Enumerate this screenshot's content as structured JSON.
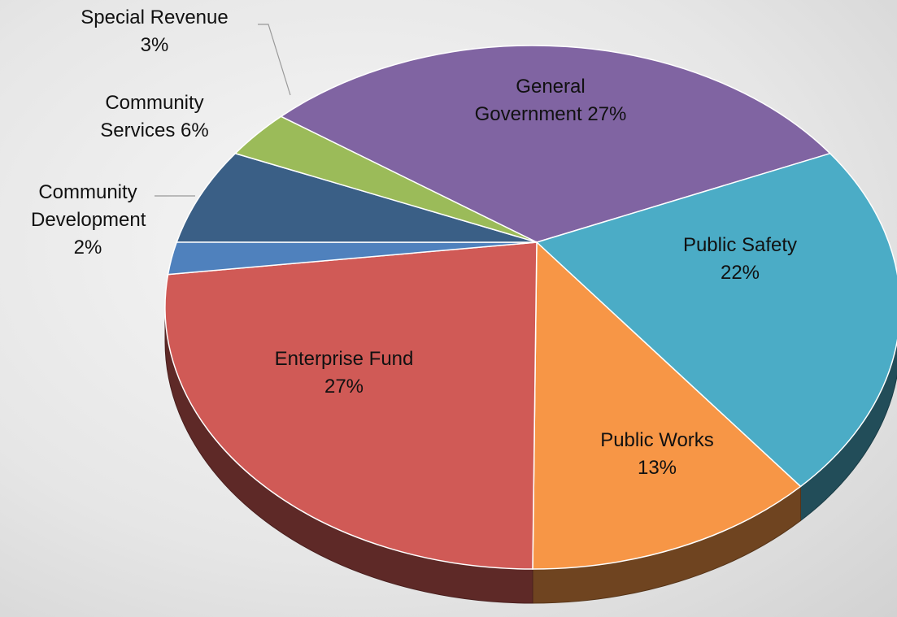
{
  "chart_data": {
    "type": "pie3d",
    "categories": [
      "General Government",
      "Public Safety",
      "Public Works",
      "Enterprise Fund",
      "Community Development",
      "Community Services",
      "Special Revenue"
    ],
    "values": [
      27,
      22,
      13,
      27,
      2,
      6,
      3
    ],
    "value_labels": [
      "27%",
      "22%",
      "13%",
      "27%",
      "2%",
      "6%",
      "3%"
    ],
    "colors": [
      "#8064a2",
      "#4bacc6",
      "#f79646",
      "#d05a56",
      "#4f81bd",
      "#3a5f86",
      "#9bbb59"
    ]
  }
}
